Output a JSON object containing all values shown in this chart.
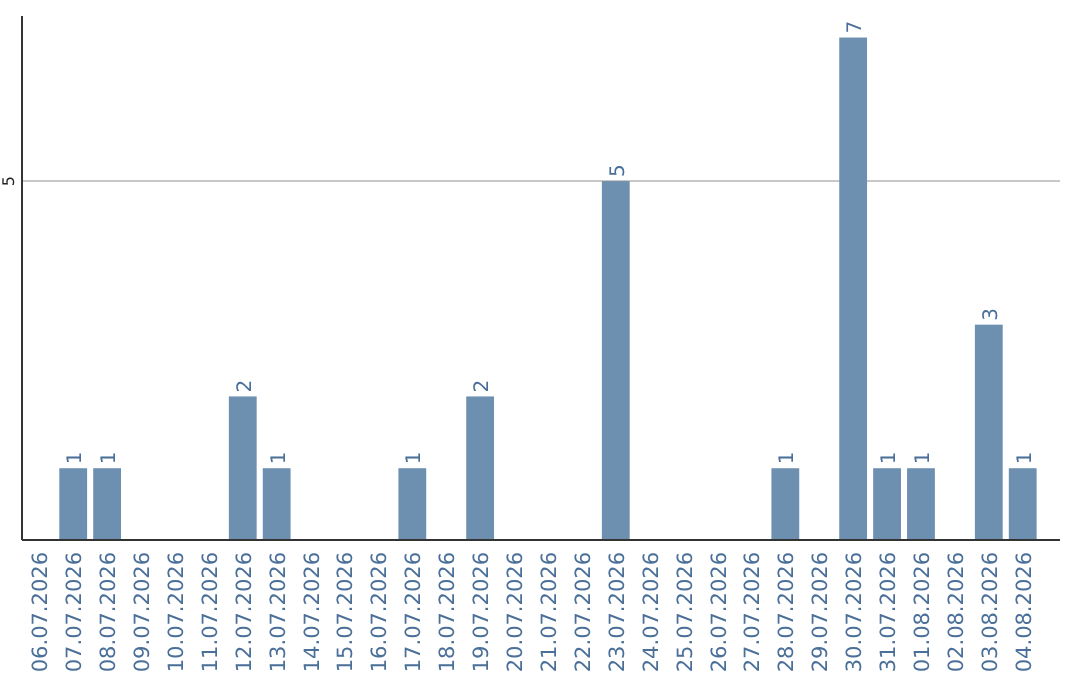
{
  "chart_data": {
    "type": "bar",
    "categories": [
      "06.07.2026",
      "07.07.2026",
      "08.07.2026",
      "09.07.2026",
      "10.07.2026",
      "11.07.2026",
      "12.07.2026",
      "13.07.2026",
      "14.07.2026",
      "15.07.2026",
      "16.07.2026",
      "17.07.2026",
      "18.07.2026",
      "19.07.2026",
      "20.07.2026",
      "21.07.2026",
      "22.07.2026",
      "23.07.2026",
      "24.07.2026",
      "25.07.2026",
      "26.07.2026",
      "27.07.2026",
      "28.07.2026",
      "29.07.2026",
      "30.07.2026",
      "31.07.2026",
      "01.08.2026",
      "02.08.2026",
      "03.08.2026",
      "04.08.2026"
    ],
    "values": [
      0,
      1,
      1,
      0,
      0,
      0,
      2,
      1,
      0,
      0,
      0,
      1,
      0,
      2,
      0,
      0,
      0,
      5,
      0,
      0,
      0,
      0,
      1,
      0,
      7,
      1,
      1,
      0,
      3,
      1
    ],
    "value_labels": [
      null,
      "1",
      "1",
      null,
      null,
      null,
      "2",
      "1",
      null,
      null,
      null,
      "1",
      null,
      "2",
      null,
      null,
      null,
      "5",
      null,
      null,
      null,
      null,
      "1",
      null,
      "7",
      "1",
      "1",
      null,
      "3",
      "1"
    ],
    "color": "#6d8fb0",
    "ylim": [
      0,
      7.3
    ],
    "yticks": [
      5
    ],
    "grid": "y"
  }
}
